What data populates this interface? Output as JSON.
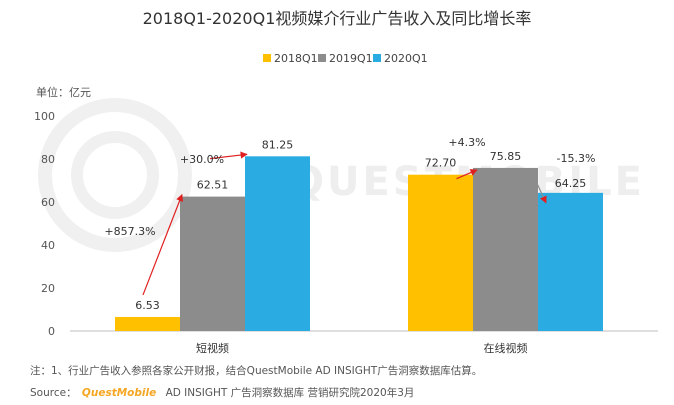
{
  "chart_data": {
    "type": "bar",
    "title": "2018Q1-2020Q1视频媒介行业广告收入及同比增长率",
    "unit_label": "单位：亿元",
    "categories": [
      "短视频",
      "在线视频"
    ],
    "series": [
      {
        "name": "2018Q1",
        "values": [
          6.53,
          72.7
        ],
        "color": "#FFC000"
      },
      {
        "name": "2019Q1",
        "values": [
          62.51,
          75.85
        ],
        "color": "#8C8C8C"
      },
      {
        "name": "2020Q1",
        "values": [
          81.25,
          64.25
        ],
        "color": "#2AABE2"
      }
    ],
    "value_labels": [
      [
        "6.53",
        "62.51",
        "81.25"
      ],
      [
        "72.70",
        "75.85",
        "64.25"
      ]
    ],
    "ylim": [
      0,
      100
    ],
    "yticks": [
      0,
      20,
      40,
      60,
      80,
      100
    ],
    "grid": false,
    "legend_position": "top",
    "growth_annotations": [
      {
        "category": 0,
        "from_series": 0,
        "to_series": 1,
        "text": "+857.3%",
        "color": "#333333"
      },
      {
        "category": 0,
        "from_series": 1,
        "to_series": 2,
        "text": "+30.0%",
        "color": "#333333"
      },
      {
        "category": 1,
        "from_series": 0,
        "to_series": 1,
        "text": "+4.3%",
        "color": "#333333"
      },
      {
        "category": 1,
        "from_series": 1,
        "to_series": 2,
        "text": "-15.3%",
        "color": "#E02020"
      }
    ],
    "arrow_color": "#E02020"
  },
  "watermark": "QUESTMOBILE",
  "footnote": "注：1、行业广告收入参照各家公开财报，结合QuestMobile AD INSIGHT广告洞察数据库估算。",
  "source": {
    "label": "Source：",
    "brand": "QuestMobile",
    "brand_color": "#F5A623",
    "text": "AD INSIGHT 广告洞察数据库 营销研究院2020年3月"
  }
}
